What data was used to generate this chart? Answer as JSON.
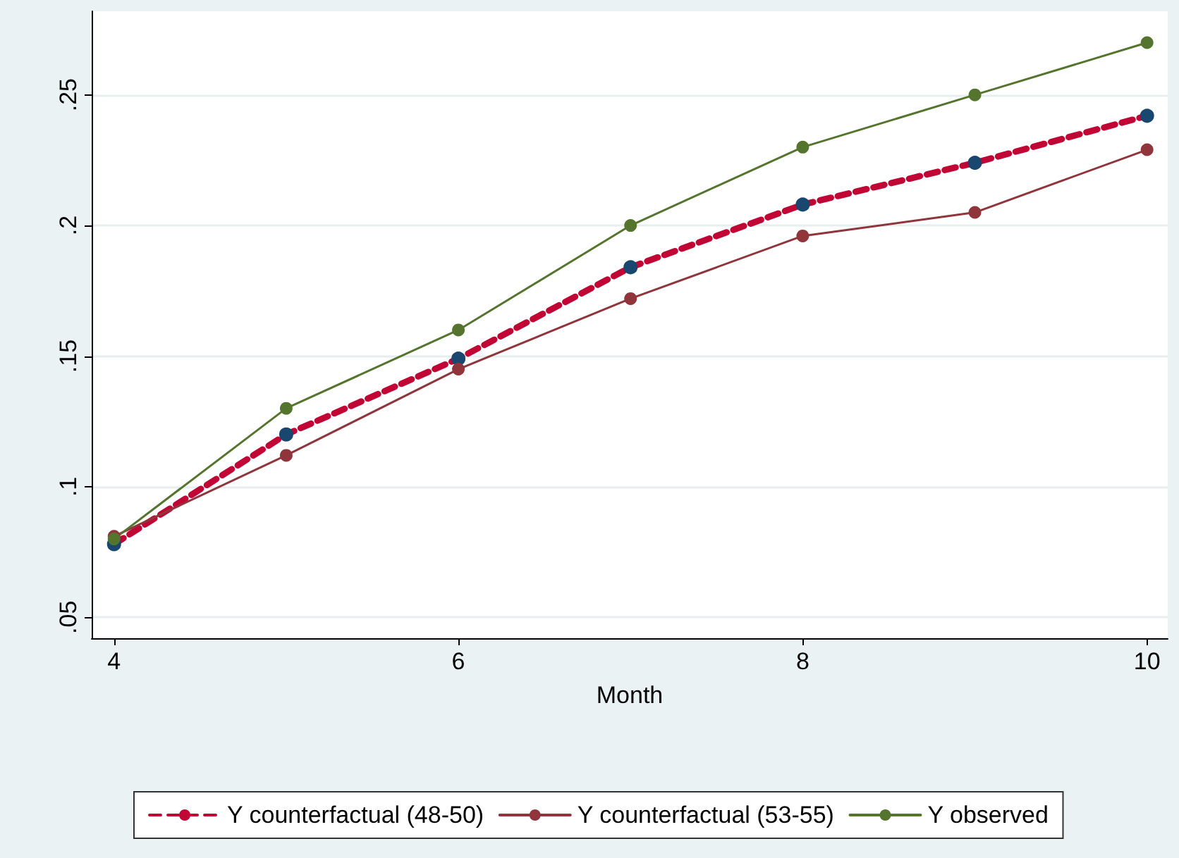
{
  "chart_data": {
    "type": "line",
    "xlabel": "Month",
    "x": [
      4,
      5,
      6,
      7,
      8,
      9,
      10
    ],
    "series": [
      {
        "name": "Y counterfactual (48-50)",
        "color": "#c10534",
        "line_style": "dashed",
        "colors": [
          "#1a476f",
          "#1a476f",
          "#1a476f",
          "#1a476f",
          "#1a476f",
          "#1a476f",
          "#1a476f"
        ],
        "values": [
          0.078,
          0.12,
          0.149,
          0.184,
          0.208,
          0.224,
          0.242
        ]
      },
      {
        "name": "Y counterfactual (53-55)",
        "color": "#90353b",
        "line_style": "solid",
        "values": [
          0.081,
          0.112,
          0.145,
          0.172,
          0.196,
          0.205,
          0.229
        ]
      },
      {
        "name": "Y observed",
        "color": "#55752f",
        "line_style": "solid",
        "values": [
          0.08,
          0.13,
          0.16,
          0.2,
          0.23,
          0.25,
          0.27
        ]
      }
    ],
    "xlim": [
      3.87,
      10.12
    ],
    "xticks": [
      4,
      6,
      8,
      10
    ],
    "ylim": [
      0.042,
      0.282
    ],
    "yticks": [
      {
        "value": 0.05,
        "label": ".05"
      },
      {
        "value": 0.1,
        "label": ".1"
      },
      {
        "value": 0.15,
        "label": ".15"
      },
      {
        "value": 0.2,
        "label": ".2"
      },
      {
        "value": 0.25,
        "label": ".25"
      }
    ],
    "grid": "y",
    "legend": "bottom",
    "marker": "circle"
  }
}
